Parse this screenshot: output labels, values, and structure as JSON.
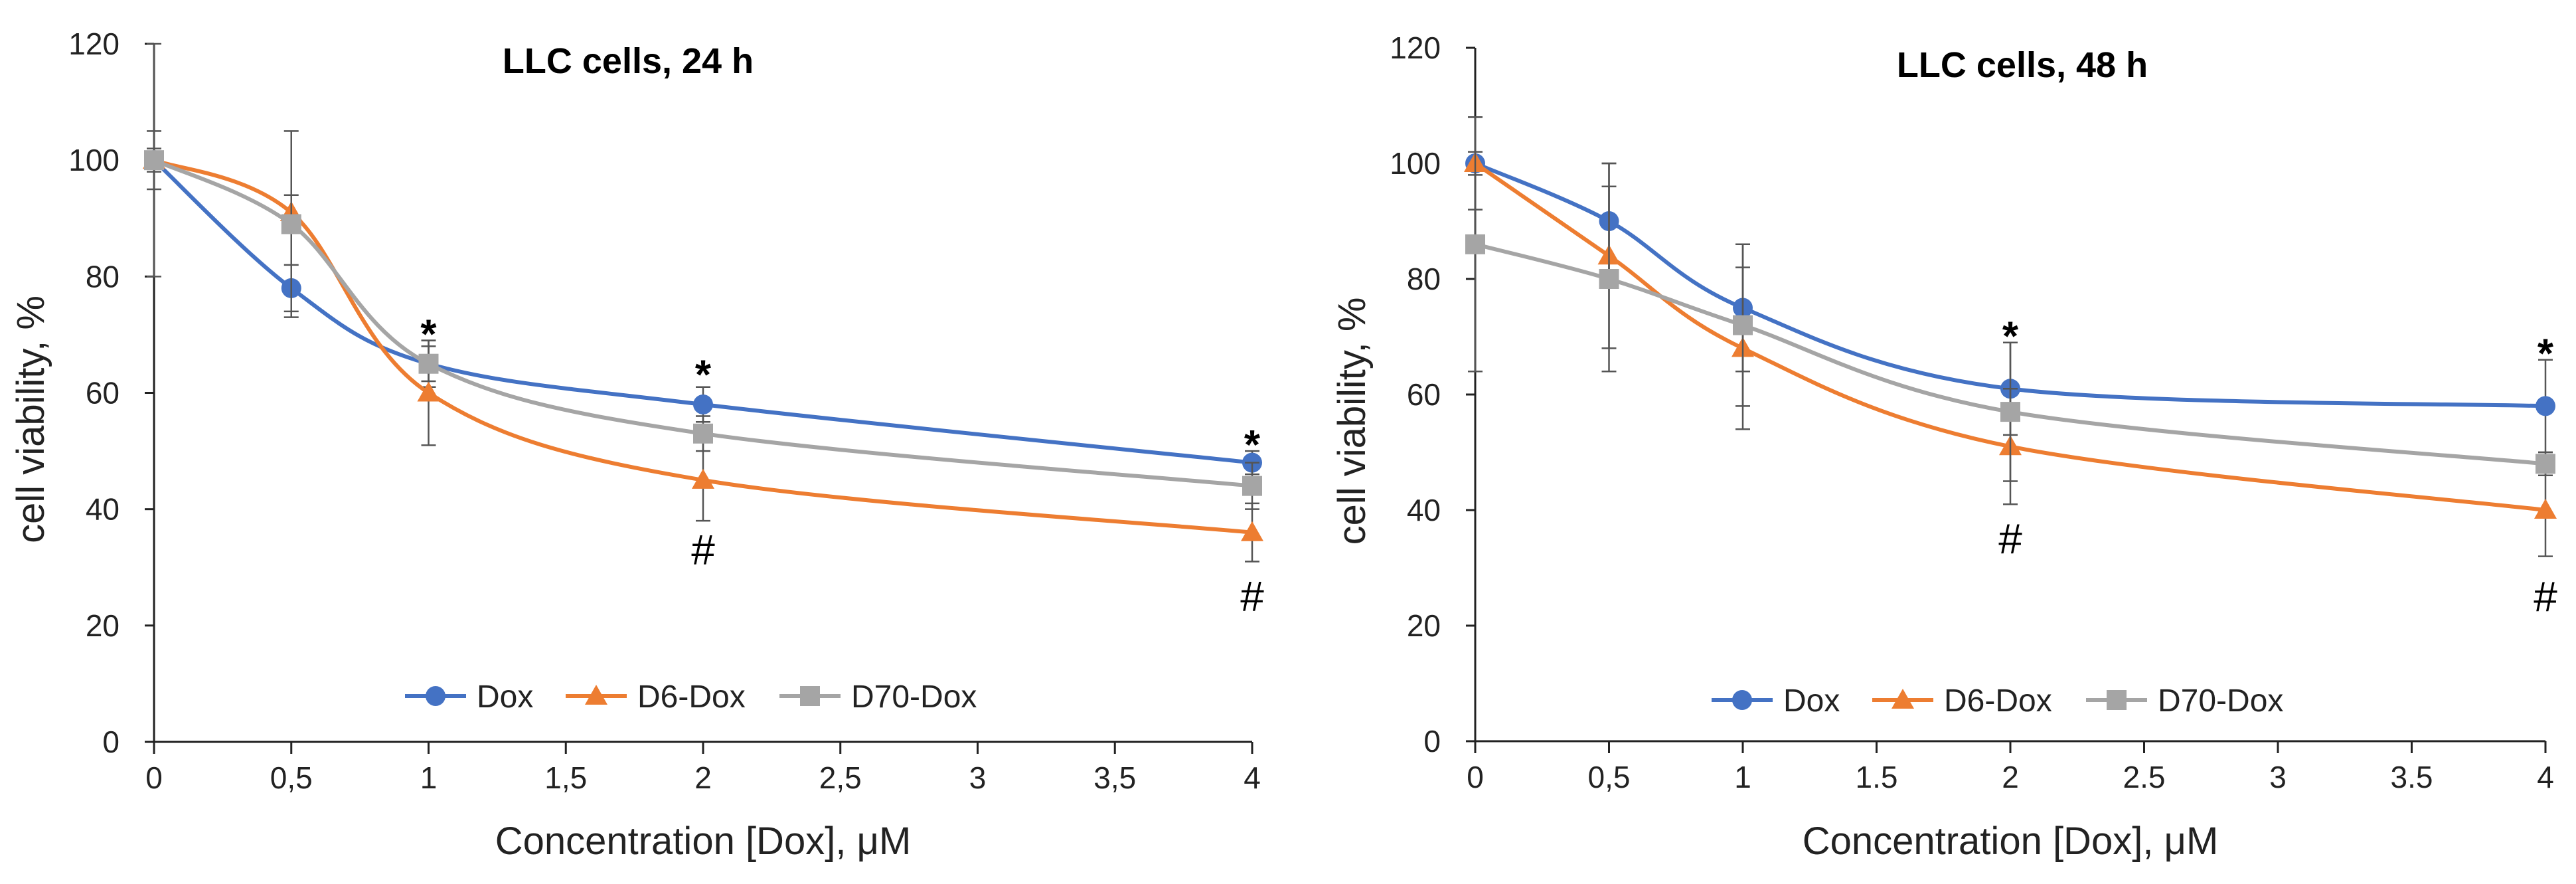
{
  "chart_data": [
    {
      "type": "line",
      "title": "LLC cells, 24 h",
      "xlabel": "Concentration [Dox], μM",
      "ylabel": "cell viability, %",
      "xlim": [
        0,
        4
      ],
      "ylim": [
        0,
        120
      ],
      "x_ticks": [
        0,
        0.5,
        1,
        1.5,
        2,
        2.5,
        3,
        3.5,
        4
      ],
      "x_tick_labels": [
        "0",
        "0,5",
        "1",
        "1,5",
        "2",
        "2,5",
        "3",
        "3,5",
        "4"
      ],
      "y_ticks": [
        0,
        20,
        40,
        60,
        80,
        100,
        120
      ],
      "y_tick_labels": [
        "0",
        "20",
        "40",
        "60",
        "80",
        "100",
        "120"
      ],
      "legend_position": "bottom-center",
      "series": [
        {
          "name": "Dox",
          "color": "#4472c4",
          "marker": "circle",
          "x": [
            0,
            0.5,
            1,
            2,
            4
          ],
          "y": [
            100,
            78,
            65,
            58,
            48
          ],
          "err": [
            5,
            4,
            4,
            3,
            2
          ]
        },
        {
          "name": "D6-Dox",
          "color": "#ed7d31",
          "marker": "triangle",
          "x": [
            0,
            0.5,
            1,
            2,
            4
          ],
          "y": [
            100,
            91,
            60,
            45,
            36
          ],
          "err": [
            2,
            3,
            9,
            7,
            5
          ]
        },
        {
          "name": "D70-Dox",
          "color": "#a5a5a5",
          "marker": "square",
          "x": [
            0,
            0.5,
            1,
            2,
            4
          ],
          "y": [
            100,
            89,
            65,
            53,
            44
          ],
          "err": [
            20,
            16,
            3,
            3,
            4
          ]
        }
      ],
      "annotations": [
        {
          "x": 1,
          "y": 72,
          "text": "*"
        },
        {
          "x": 2,
          "y": 65,
          "text": "*"
        },
        {
          "x": 4,
          "y": 53,
          "text": "*"
        },
        {
          "x": 2,
          "y": 33,
          "text": "#"
        },
        {
          "x": 4,
          "y": 25,
          "text": "#"
        }
      ]
    },
    {
      "type": "line",
      "title": "LLC cells, 48 h",
      "xlabel": "Concentration [Dox], μM",
      "ylabel": "cell viability, %",
      "xlim": [
        0,
        4
      ],
      "ylim": [
        0,
        120
      ],
      "x_ticks": [
        0,
        0.5,
        1,
        1.5,
        2,
        2.5,
        3,
        3.5,
        4
      ],
      "x_tick_labels": [
        "0",
        "0,5",
        "1",
        "1.5",
        "2",
        "2.5",
        "3",
        "3.5",
        "4"
      ],
      "y_ticks": [
        0,
        20,
        40,
        60,
        80,
        100,
        120
      ],
      "y_tick_labels": [
        "0",
        "20",
        "40",
        "60",
        "80",
        "100",
        "120"
      ],
      "legend_position": "bottom-center",
      "series": [
        {
          "name": "Dox",
          "color": "#4472c4",
          "marker": "circle",
          "x": [
            0,
            0.5,
            1,
            2,
            4
          ],
          "y": [
            100,
            90,
            75,
            61,
            58
          ],
          "err": [
            8,
            10,
            11,
            8,
            8
          ]
        },
        {
          "name": "D6-Dox",
          "color": "#ed7d31",
          "marker": "triangle",
          "x": [
            0,
            0.5,
            1,
            2,
            4
          ],
          "y": [
            100,
            84,
            68,
            51,
            40
          ],
          "err": [
            2,
            16,
            14,
            10,
            8
          ]
        },
        {
          "name": "D70-Dox",
          "color": "#a5a5a5",
          "marker": "square",
          "x": [
            0,
            0.5,
            1,
            2,
            4
          ],
          "y": [
            86,
            80,
            72,
            57,
            48
          ],
          "err": [
            22,
            16,
            14,
            12,
            2
          ]
        }
      ],
      "annotations": [
        {
          "x": 2,
          "y": 72,
          "text": "*"
        },
        {
          "x": 4,
          "y": 69,
          "text": "*"
        },
        {
          "x": 2,
          "y": 35,
          "text": "#"
        },
        {
          "x": 4,
          "y": 25,
          "text": "#"
        }
      ]
    }
  ]
}
